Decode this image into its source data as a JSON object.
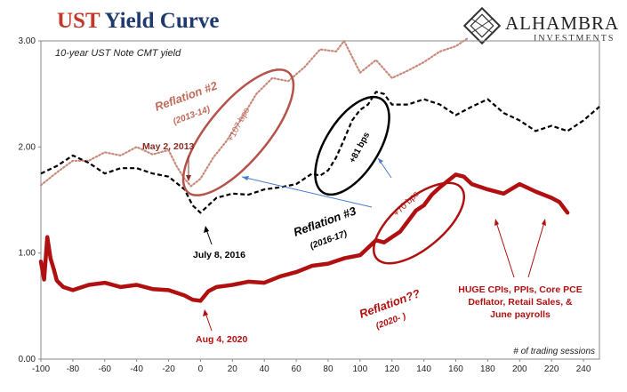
{
  "header": {
    "title_part1": "UST",
    "title_part2": "Yield Curve",
    "logo_name": "ALHAMBRA",
    "logo_sub": "INVESTMENTS"
  },
  "chart_data": {
    "type": "line",
    "subtitle": "10-year UST Note CMT yield",
    "xlabel": "# of trading sessions",
    "ylabel": "",
    "xlim": [
      -100,
      250
    ],
    "ylim": [
      0,
      3.0
    ],
    "x_ticks": [
      -100,
      -80,
      -60,
      -40,
      -20,
      0,
      20,
      40,
      60,
      80,
      100,
      120,
      140,
      160,
      180,
      200,
      220,
      240
    ],
    "y_ticks": [
      "0.00",
      "1.00",
      "2.00",
      "3.00"
    ],
    "series": [
      {
        "name": "Reflation #2 (2013-14)",
        "style": "dotted",
        "color": "#c98a7c",
        "x": [
          -100,
          -90,
          -80,
          -70,
          -60,
          -50,
          -40,
          -30,
          -20,
          -15,
          -10,
          -6,
          0,
          8,
          16,
          25,
          35,
          45,
          55,
          65,
          75,
          85,
          90,
          95,
          100,
          110,
          120,
          130,
          140,
          150,
          160,
          167
        ],
        "y": [
          1.64,
          1.76,
          1.87,
          1.87,
          1.95,
          1.92,
          2.0,
          1.93,
          1.97,
          1.82,
          1.7,
          1.63,
          1.7,
          1.9,
          2.05,
          2.25,
          2.5,
          2.65,
          2.62,
          2.75,
          2.92,
          2.9,
          3.0,
          2.85,
          2.7,
          2.82,
          2.65,
          2.72,
          2.8,
          2.9,
          2.95,
          3.02
        ]
      },
      {
        "name": "Reflation #3 (2016-17)",
        "style": "dashed",
        "color": "#000000",
        "x": [
          -100,
          -90,
          -80,
          -70,
          -60,
          -50,
          -40,
          -30,
          -20,
          -10,
          -5,
          0,
          10,
          20,
          30,
          40,
          50,
          60,
          70,
          75,
          80,
          85,
          90,
          95,
          100,
          105,
          110,
          115,
          120,
          130,
          140,
          150,
          160,
          170,
          180,
          190,
          200,
          210,
          220,
          230,
          240,
          250
        ],
        "y": [
          1.75,
          1.82,
          1.92,
          1.85,
          1.75,
          1.8,
          1.8,
          1.75,
          1.72,
          1.6,
          1.45,
          1.38,
          1.52,
          1.56,
          1.55,
          1.6,
          1.62,
          1.65,
          1.75,
          1.73,
          1.78,
          1.9,
          2.07,
          2.25,
          2.35,
          2.4,
          2.52,
          2.5,
          2.4,
          2.4,
          2.45,
          2.4,
          2.3,
          2.38,
          2.45,
          2.32,
          2.25,
          2.15,
          2.2,
          2.15,
          2.25,
          2.38
        ]
      },
      {
        "name": "Reflation?? (2020-)",
        "style": "solid",
        "color": "#b01010",
        "x": [
          -100,
          -98,
          -96,
          -94,
          -92,
          -90,
          -86,
          -80,
          -70,
          -60,
          -50,
          -40,
          -30,
          -20,
          -10,
          -5,
          0,
          5,
          10,
          20,
          30,
          40,
          50,
          60,
          70,
          80,
          90,
          100,
          105,
          110,
          115,
          120,
          125,
          130,
          135,
          140,
          145,
          150,
          155,
          160,
          165,
          170,
          180,
          190,
          200,
          210,
          220,
          225,
          230
        ],
        "y": [
          0.92,
          0.75,
          1.15,
          0.95,
          0.85,
          0.74,
          0.68,
          0.65,
          0.7,
          0.72,
          0.68,
          0.7,
          0.66,
          0.65,
          0.6,
          0.56,
          0.55,
          0.64,
          0.68,
          0.7,
          0.73,
          0.72,
          0.78,
          0.82,
          0.88,
          0.9,
          0.95,
          0.98,
          1.05,
          1.12,
          1.1,
          1.15,
          1.2,
          1.3,
          1.4,
          1.45,
          1.55,
          1.62,
          1.68,
          1.74,
          1.72,
          1.65,
          1.6,
          1.56,
          1.65,
          1.58,
          1.52,
          1.48,
          1.38
        ]
      }
    ],
    "annotations": {
      "reflation2_title": "Reflation #2",
      "reflation2_years": "(2013-14)",
      "reflation3_title": "Reflation #3",
      "reflation3_years": "(2016-17)",
      "reflation_now_title": "Reflation??",
      "reflation_now_years": "(2020- )",
      "bps_107": "+107 bps",
      "bps_81": "+81 bps",
      "bps_70": "+70 bps",
      "date_2013": "May 2, 2013",
      "date_2016": "July 8, 2016",
      "date_2020": "Aug 4, 2020",
      "data_note": [
        "HUGE CPIs, PPIs, Core PCE",
        "Deflator, Retail Sales, &",
        "June payrolls"
      ]
    }
  }
}
